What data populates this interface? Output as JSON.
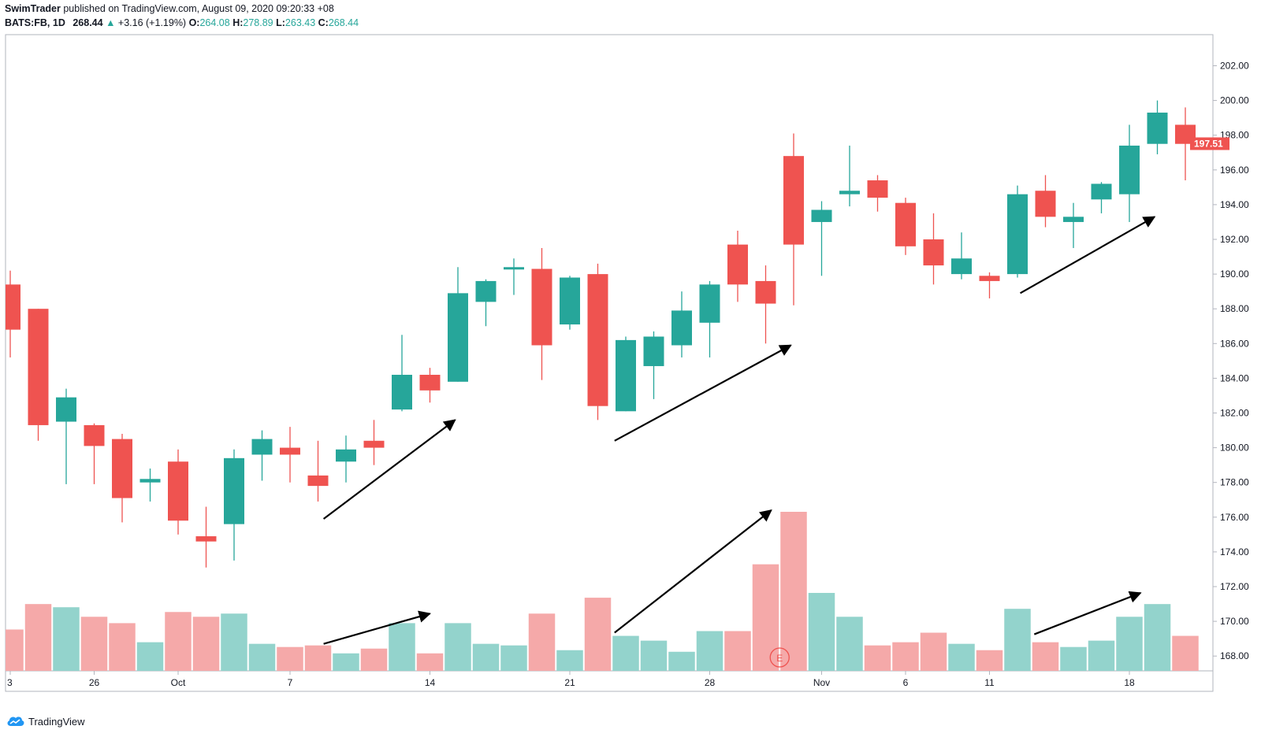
{
  "header": {
    "author": "SwimTrader",
    "published_text": "published on TradingView.com, August 09, 2020 09:20:33 +08",
    "symbol": "BATS:FB, 1D",
    "last": "268.44",
    "change_arrow": "▲",
    "change": "+3.16 (+1.19%)",
    "o_label": "O:",
    "o_value": "264.08",
    "h_label": "H:",
    "h_value": "278.89",
    "l_label": "L:",
    "l_value": "263.43",
    "c_label": "C:",
    "c_value": "268.44"
  },
  "footer": {
    "brand": "TradingView"
  },
  "colors": {
    "up": "#26a69a",
    "down": "#ef5350",
    "vol_up": "#93d3cc",
    "vol_down": "#f5a9a9",
    "price_label": "#ef5350"
  },
  "chart_data": {
    "type": "candlestick",
    "ylim": [
      167,
      203
    ],
    "y_ticks": [
      "168.00",
      "170.00",
      "172.00",
      "174.00",
      "176.00",
      "178.00",
      "180.00",
      "182.00",
      "184.00",
      "186.00",
      "188.00",
      "190.00",
      "192.00",
      "194.00",
      "196.00",
      "198.00",
      "200.00",
      "202.00"
    ],
    "x_ticks": [
      {
        "i": 0,
        "label": "3"
      },
      {
        "i": 3,
        "label": "26"
      },
      {
        "i": 6,
        "label": "Oct"
      },
      {
        "i": 10,
        "label": "7"
      },
      {
        "i": 15,
        "label": "14"
      },
      {
        "i": 20,
        "label": "21"
      },
      {
        "i": 25,
        "label": "28"
      },
      {
        "i": 29,
        "label": "Nov"
      },
      {
        "i": 32,
        "label": "6"
      },
      {
        "i": 35,
        "label": "11"
      },
      {
        "i": 40,
        "label": "18"
      }
    ],
    "last_price_label": "197.51",
    "last_price": 197.51,
    "candles": [
      {
        "o": 189.4,
        "h": 190.2,
        "l": 185.2,
        "c": 186.8
      },
      {
        "o": 188.0,
        "h": 188.0,
        "l": 180.4,
        "c": 181.3
      },
      {
        "o": 181.5,
        "h": 183.4,
        "l": 177.9,
        "c": 182.9
      },
      {
        "o": 181.3,
        "h": 181.4,
        "l": 177.9,
        "c": 180.1
      },
      {
        "o": 180.5,
        "h": 180.8,
        "l": 175.7,
        "c": 177.1
      },
      {
        "o": 178.0,
        "h": 178.8,
        "l": 176.9,
        "c": 178.2
      },
      {
        "o": 179.2,
        "h": 179.9,
        "l": 175.0,
        "c": 175.8
      },
      {
        "o": 174.9,
        "h": 176.6,
        "l": 173.1,
        "c": 174.6
      },
      {
        "o": 175.6,
        "h": 179.9,
        "l": 173.5,
        "c": 179.4
      },
      {
        "o": 179.6,
        "h": 181.0,
        "l": 178.1,
        "c": 180.5
      },
      {
        "o": 180.0,
        "h": 181.2,
        "l": 178.0,
        "c": 179.6
      },
      {
        "o": 178.4,
        "h": 180.4,
        "l": 176.9,
        "c": 177.8
      },
      {
        "o": 179.2,
        "h": 180.7,
        "l": 178.0,
        "c": 179.9
      },
      {
        "o": 180.4,
        "h": 181.6,
        "l": 179.0,
        "c": 180.0
      },
      {
        "o": 182.2,
        "h": 186.5,
        "l": 182.1,
        "c": 184.2
      },
      {
        "o": 184.2,
        "h": 184.6,
        "l": 182.6,
        "c": 183.3
      },
      {
        "o": 183.8,
        "h": 190.4,
        "l": 183.8,
        "c": 188.9
      },
      {
        "o": 188.4,
        "h": 189.7,
        "l": 187.0,
        "c": 189.6
      },
      {
        "o": 190.4,
        "h": 190.9,
        "l": 188.8,
        "c": 190.4
      },
      {
        "o": 190.3,
        "h": 191.5,
        "l": 183.9,
        "c": 185.9
      },
      {
        "o": 187.1,
        "h": 189.9,
        "l": 186.8,
        "c": 189.8
      },
      {
        "o": 190.0,
        "h": 190.6,
        "l": 181.6,
        "c": 182.4
      },
      {
        "o": 182.1,
        "h": 186.4,
        "l": 182.1,
        "c": 186.2
      },
      {
        "o": 184.7,
        "h": 186.7,
        "l": 182.8,
        "c": 186.4
      },
      {
        "o": 185.9,
        "h": 189.0,
        "l": 185.2,
        "c": 187.9
      },
      {
        "o": 187.2,
        "h": 189.6,
        "l": 185.2,
        "c": 189.4
      },
      {
        "o": 191.7,
        "h": 192.5,
        "l": 188.4,
        "c": 189.4
      },
      {
        "o": 189.6,
        "h": 190.5,
        "l": 186.0,
        "c": 188.3
      },
      {
        "o": 196.8,
        "h": 198.1,
        "l": 188.2,
        "c": 191.7
      },
      {
        "o": 193.0,
        "h": 194.2,
        "l": 189.9,
        "c": 193.7
      },
      {
        "o": 194.6,
        "h": 197.4,
        "l": 193.9,
        "c": 194.8
      },
      {
        "o": 195.4,
        "h": 195.7,
        "l": 193.6,
        "c": 194.4
      },
      {
        "o": 194.1,
        "h": 194.4,
        "l": 191.1,
        "c": 191.6
      },
      {
        "o": 192.0,
        "h": 193.5,
        "l": 189.4,
        "c": 190.5
      },
      {
        "o": 190.0,
        "h": 192.4,
        "l": 189.7,
        "c": 190.9
      },
      {
        "o": 189.9,
        "h": 190.1,
        "l": 188.6,
        "c": 189.6
      },
      {
        "o": 190.0,
        "h": 195.1,
        "l": 189.8,
        "c": 194.6
      },
      {
        "o": 194.8,
        "h": 195.7,
        "l": 192.7,
        "c": 193.3
      },
      {
        "o": 193.0,
        "h": 194.1,
        "l": 191.5,
        "c": 193.3
      },
      {
        "o": 194.3,
        "h": 195.3,
        "l": 193.5,
        "c": 195.2
      },
      {
        "o": 194.6,
        "h": 198.6,
        "l": 193.0,
        "c": 197.4
      },
      {
        "o": 197.5,
        "h": 200.0,
        "l": 196.9,
        "c": 199.3
      },
      {
        "o": 198.6,
        "h": 199.6,
        "l": 195.4,
        "c": 197.5
      }
    ],
    "volume_relative": [
      0.26,
      0.42,
      0.4,
      0.34,
      0.3,
      0.18,
      0.37,
      0.34,
      0.36,
      0.17,
      0.15,
      0.16,
      0.11,
      0.14,
      0.3,
      0.11,
      0.3,
      0.17,
      0.16,
      0.36,
      0.13,
      0.46,
      0.22,
      0.19,
      0.12,
      0.25,
      0.25,
      0.67,
      1.0,
      0.49,
      0.34,
      0.16,
      0.18,
      0.24,
      0.17,
      0.13,
      0.39,
      0.18,
      0.15,
      0.19,
      0.34,
      0.42,
      0.22
    ],
    "annotation_arrows": [
      {
        "from": {
          "i": 11.2,
          "price": 175.9
        },
        "to": {
          "i": 15.9,
          "price": 181.6
        }
      },
      {
        "from": {
          "i": 21.6,
          "price": 180.4
        },
        "to": {
          "i": 27.9,
          "price": 185.9
        }
      },
      {
        "from": {
          "i": 36.1,
          "price": 188.9
        },
        "to": {
          "i": 40.9,
          "price": 193.3
        }
      },
      {
        "from": {
          "i": 11.2,
          "vol": 0.17
        },
        "to": {
          "i": 15.0,
          "vol": 0.36
        }
      },
      {
        "from": {
          "i": 21.6,
          "vol": 0.24
        },
        "to": {
          "i": 27.2,
          "vol": 1.01
        }
      },
      {
        "from": {
          "i": 36.6,
          "vol": 0.23
        },
        "to": {
          "i": 40.4,
          "vol": 0.49
        }
      }
    ],
    "event_marker": {
      "i": 27.5,
      "label": "E"
    }
  }
}
